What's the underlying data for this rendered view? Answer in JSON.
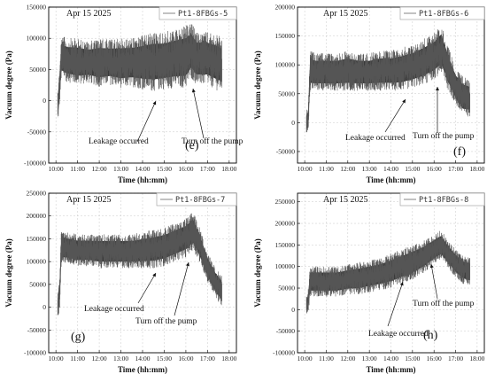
{
  "chart_data": [
    {
      "type": "area",
      "panel_label": "(e)",
      "date": "Apr 15 2025",
      "legend": "Pt1-8FBGs-5",
      "xlabel": "Time (hh:mm)",
      "ylabel": "Vacuum degree (Pa)",
      "x_ticks": [
        "10:00",
        "11:00",
        "12:00",
        "13:00",
        "14:00",
        "15:00",
        "16:00",
        "17:00",
        "18:00"
      ],
      "y_ticks": [
        -100000,
        -50000,
        0,
        50000,
        100000,
        150000
      ],
      "ylim": [
        -100000,
        150000
      ],
      "xlim": [
        "09:40",
        "18:20"
      ],
      "series": [
        {
          "x": [
            "10:05",
            "10:10",
            "10:15",
            "10:30",
            "11:00",
            "11:30",
            "12:00",
            "12:30",
            "13:00",
            "13:30",
            "14:00",
            "14:30",
            "15:00",
            "15:30",
            "16:00",
            "16:15",
            "16:30",
            "17:00",
            "17:30",
            "17:40"
          ],
          "lower": [
            -40000,
            -10000,
            35000,
            30000,
            25000,
            28000,
            22000,
            25000,
            20000,
            22000,
            18000,
            15000,
            18000,
            20000,
            20000,
            35000,
            25000,
            25000,
            15000,
            15000
          ],
          "upper": [
            20000,
            50000,
            105000,
            100000,
            100000,
            95000,
            100000,
            98000,
            100000,
            100000,
            105000,
            110000,
            110000,
            115000,
            120000,
            125000,
            110000,
            110000,
            105000,
            100000
          ]
        }
      ],
      "annotations": [
        {
          "text": "Leakage occurred",
          "x": "15:00",
          "y": 5000
        },
        {
          "text": "Turn off the pump",
          "x": "16:15",
          "y": 20000
        }
      ],
      "grid": true
    },
    {
      "type": "area",
      "panel_label": "(f)",
      "date": "Apr 15 2025",
      "legend": "Pt1-8FBGs-6",
      "xlabel": "Time (hh:mm)",
      "ylabel": "Vacuum degree (Pa)",
      "x_ticks": [
        "10:00",
        "11:00",
        "12:00",
        "13:00",
        "14:00",
        "15:00",
        "16:00",
        "17:00",
        "18:00"
      ],
      "y_ticks": [
        -50000,
        0,
        50000,
        100000,
        150000,
        200000
      ],
      "ylim": [
        -70000,
        200000
      ],
      "xlim": [
        "09:40",
        "18:20"
      ],
      "series": [
        {
          "x": [
            "10:05",
            "10:10",
            "10:15",
            "10:30",
            "11:00",
            "11:30",
            "12:00",
            "12:30",
            "13:00",
            "13:30",
            "14:00",
            "14:30",
            "15:00",
            "15:30",
            "16:00",
            "16:20",
            "16:40",
            "17:00",
            "17:20",
            "17:40"
          ],
          "lower": [
            -20000,
            -15000,
            55000,
            55000,
            55000,
            55000,
            55000,
            55000,
            55000,
            55000,
            55000,
            55000,
            60000,
            65000,
            75000,
            85000,
            55000,
            30000,
            10000,
            10000
          ],
          "upper": [
            20000,
            30000,
            125000,
            120000,
            120000,
            120000,
            125000,
            120000,
            120000,
            125000,
            125000,
            130000,
            135000,
            145000,
            155000,
            170000,
            130000,
            95000,
            80000,
            75000
          ]
        }
      ],
      "annotations": [
        {
          "text": "Leakage occurred",
          "x": "14:55",
          "y": 70000
        },
        {
          "text": "Turn off the pump",
          "x": "16:25",
          "y": 105000
        }
      ],
      "grid": true
    },
    {
      "type": "area",
      "panel_label": "(g)",
      "date": "Apr 15 2025",
      "legend": "Pt1-8FBGs-7",
      "xlabel": "Time (hh:mm)",
      "ylabel": "Vacuum degree (Pa)",
      "x_ticks": [
        "10:00",
        "11:00",
        "12:00",
        "13:00",
        "14:00",
        "15:00",
        "16:00",
        "17:00",
        "18:00"
      ],
      "y_ticks": [
        -100000,
        -50000,
        0,
        50000,
        100000,
        150000,
        200000,
        250000
      ],
      "ylim": [
        -100000,
        250000
      ],
      "xlim": [
        "09:40",
        "18:20"
      ],
      "series": [
        {
          "x": [
            "10:05",
            "10:10",
            "10:15",
            "10:30",
            "11:00",
            "11:30",
            "12:00",
            "12:30",
            "13:00",
            "13:30",
            "14:00",
            "14:30",
            "15:00",
            "15:30",
            "16:00",
            "16:20",
            "16:40",
            "17:00",
            "17:20",
            "17:40"
          ],
          "lower": [
            -20000,
            -10000,
            95000,
            95000,
            90000,
            90000,
            85000,
            85000,
            85000,
            85000,
            85000,
            85000,
            90000,
            100000,
            110000,
            125000,
            95000,
            55000,
            25000,
            0
          ],
          "upper": [
            40000,
            60000,
            170000,
            165000,
            160000,
            160000,
            160000,
            160000,
            160000,
            160000,
            165000,
            170000,
            175000,
            185000,
            195000,
            210000,
            170000,
            120000,
            90000,
            70000
          ]
        }
      ],
      "annotations": [
        {
          "text": "Leakage occurred",
          "x": "14:55",
          "y": 100000
        },
        {
          "text": "Turn off the pump",
          "x": "16:20",
          "y": 145000
        }
      ],
      "grid": true
    },
    {
      "type": "area",
      "panel_label": "(h)",
      "date": "Apr 15 2025",
      "legend": "Pt1-8FBGs-8",
      "xlabel": "Time (hh:mm)",
      "ylabel": "Vacuum degree (Pa)",
      "x_ticks": [
        "10:00",
        "11:00",
        "12:00",
        "13:00",
        "14:00",
        "15:00",
        "16:00",
        "17:00",
        "18:00"
      ],
      "y_ticks": [
        -100000,
        -50000,
        0,
        50000,
        100000,
        150000,
        200000,
        250000
      ],
      "ylim": [
        -100000,
        270000
      ],
      "xlim": [
        "09:40",
        "18:20"
      ],
      "series": [
        {
          "x": [
            "10:05",
            "10:10",
            "10:15",
            "10:30",
            "11:00",
            "11:30",
            "12:00",
            "12:30",
            "13:00",
            "13:30",
            "14:00",
            "14:30",
            "15:00",
            "15:30",
            "16:00",
            "16:20",
            "16:40",
            "17:00",
            "17:20",
            "17:40"
          ],
          "lower": [
            -20000,
            -10000,
            30000,
            30000,
            30000,
            30000,
            35000,
            35000,
            40000,
            45000,
            50000,
            60000,
            70000,
            85000,
            105000,
            115000,
            95000,
            75000,
            60000,
            55000
          ],
          "upper": [
            30000,
            50000,
            100000,
            100000,
            100000,
            100000,
            105000,
            110000,
            115000,
            120000,
            130000,
            140000,
            150000,
            160000,
            175000,
            185000,
            160000,
            140000,
            125000,
            120000
          ]
        }
      ],
      "annotations": [
        {
          "text": "Leakage occurred",
          "x": "14:55",
          "y": 75000
        },
        {
          "text": "Turn off the pump",
          "x": "16:20",
          "y": 115000
        }
      ],
      "grid": true
    }
  ]
}
